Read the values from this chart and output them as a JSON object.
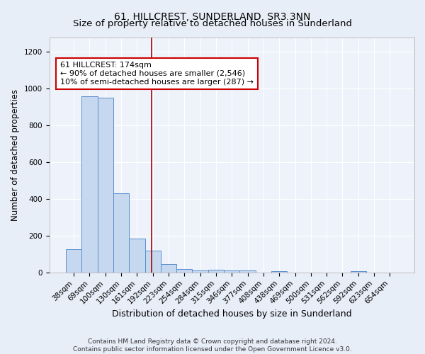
{
  "title": "61, HILLCREST, SUNDERLAND, SR3 3NN",
  "subtitle": "Size of property relative to detached houses in Sunderland",
  "xlabel": "Distribution of detached houses by size in Sunderland",
  "ylabel": "Number of detached properties",
  "categories": [
    "38sqm",
    "69sqm",
    "100sqm",
    "130sqm",
    "161sqm",
    "192sqm",
    "223sqm",
    "254sqm",
    "284sqm",
    "315sqm",
    "346sqm",
    "377sqm",
    "408sqm",
    "438sqm",
    "469sqm",
    "500sqm",
    "531sqm",
    "562sqm",
    "592sqm",
    "623sqm",
    "654sqm"
  ],
  "values": [
    125,
    960,
    950,
    430,
    185,
    120,
    45,
    20,
    12,
    15,
    12,
    10,
    0,
    8,
    0,
    0,
    0,
    0,
    8,
    0,
    0
  ],
  "bar_color": "#c5d8f0",
  "bar_edge_color": "#5b8fc9",
  "bar_edge_width": 0.7,
  "vline_pos": 4.92,
  "vline_color": "#aa0000",
  "vline_linewidth": 1.2,
  "annotation_text": "61 HILLCREST: 174sqm\n← 90% of detached houses are smaller (2,546)\n10% of semi-detached houses are larger (287) →",
  "annotation_box_color": "#ffffff",
  "annotation_box_edge_color": "#cc0000",
  "footnote": "Contains HM Land Registry data © Crown copyright and database right 2024.\nContains public sector information licensed under the Open Government Licence v3.0.",
  "ylim": [
    0,
    1280
  ],
  "yticks": [
    0,
    200,
    400,
    600,
    800,
    1000,
    1200
  ],
  "bg_color": "#e8eef8",
  "plot_bg_color": "#eef2fb",
  "grid_color": "#ffffff",
  "title_fontsize": 10,
  "xlabel_fontsize": 9,
  "ylabel_fontsize": 8.5,
  "tick_fontsize": 7.5,
  "annotation_fontsize": 8,
  "footnote_fontsize": 6.5
}
